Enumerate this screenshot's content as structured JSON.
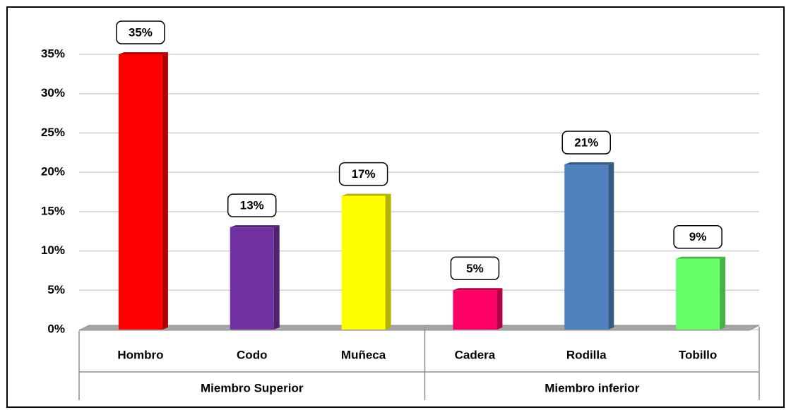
{
  "chart_data": {
    "type": "bar",
    "groups": [
      {
        "name": "Miembro Superior",
        "categories": [
          "Hombro",
          "Codo",
          "Muñeca"
        ],
        "values": [
          35,
          13,
          17
        ],
        "value_labels": [
          "35%",
          "13%",
          "17%"
        ],
        "colors": [
          "#ff0000",
          "#7030a0",
          "#ffff00"
        ]
      },
      {
        "name": "Miembro inferior",
        "categories": [
          "Cadera",
          "Rodilla",
          "Tobillo"
        ],
        "values": [
          5,
          21,
          9
        ],
        "value_labels": [
          "5%",
          "21%",
          "9%"
        ],
        "colors": [
          "#ff0066",
          "#4f81bd",
          "#66ff66"
        ]
      }
    ],
    "ylim": [
      0,
      35
    ],
    "yticks": [
      {
        "value": 0,
        "label": "0%"
      },
      {
        "value": 5,
        "label": "5%"
      },
      {
        "value": 10,
        "label": "10%"
      },
      {
        "value": 15,
        "label": "15%"
      },
      {
        "value": 20,
        "label": "20%"
      },
      {
        "value": 25,
        "label": "25%"
      },
      {
        "value": 30,
        "label": "30%"
      },
      {
        "value": 35,
        "label": "35%"
      }
    ],
    "grid": true
  }
}
